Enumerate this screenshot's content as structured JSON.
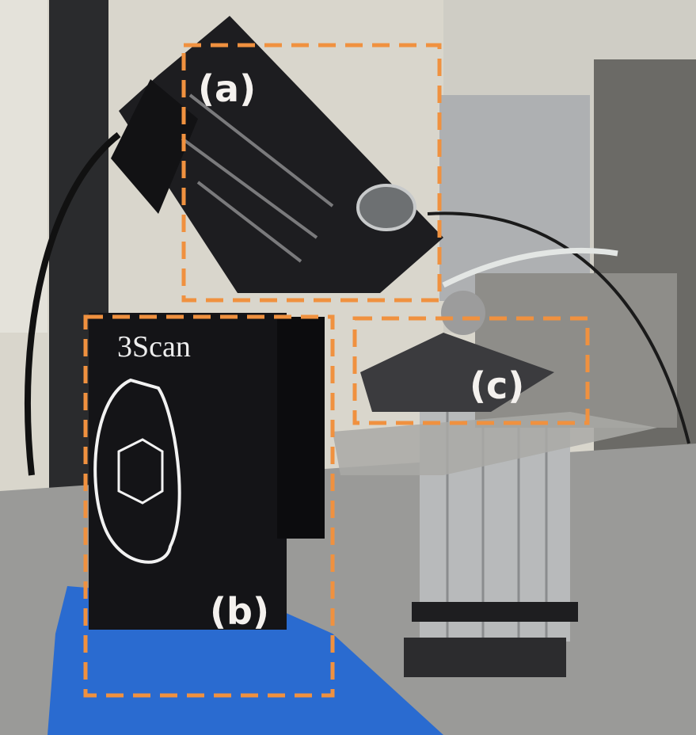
{
  "panels": [
    {
      "label": "(a)"
    },
    {
      "label": "(b)"
    },
    {
      "label": "(c)"
    }
  ],
  "device_brand": "3Scan"
}
